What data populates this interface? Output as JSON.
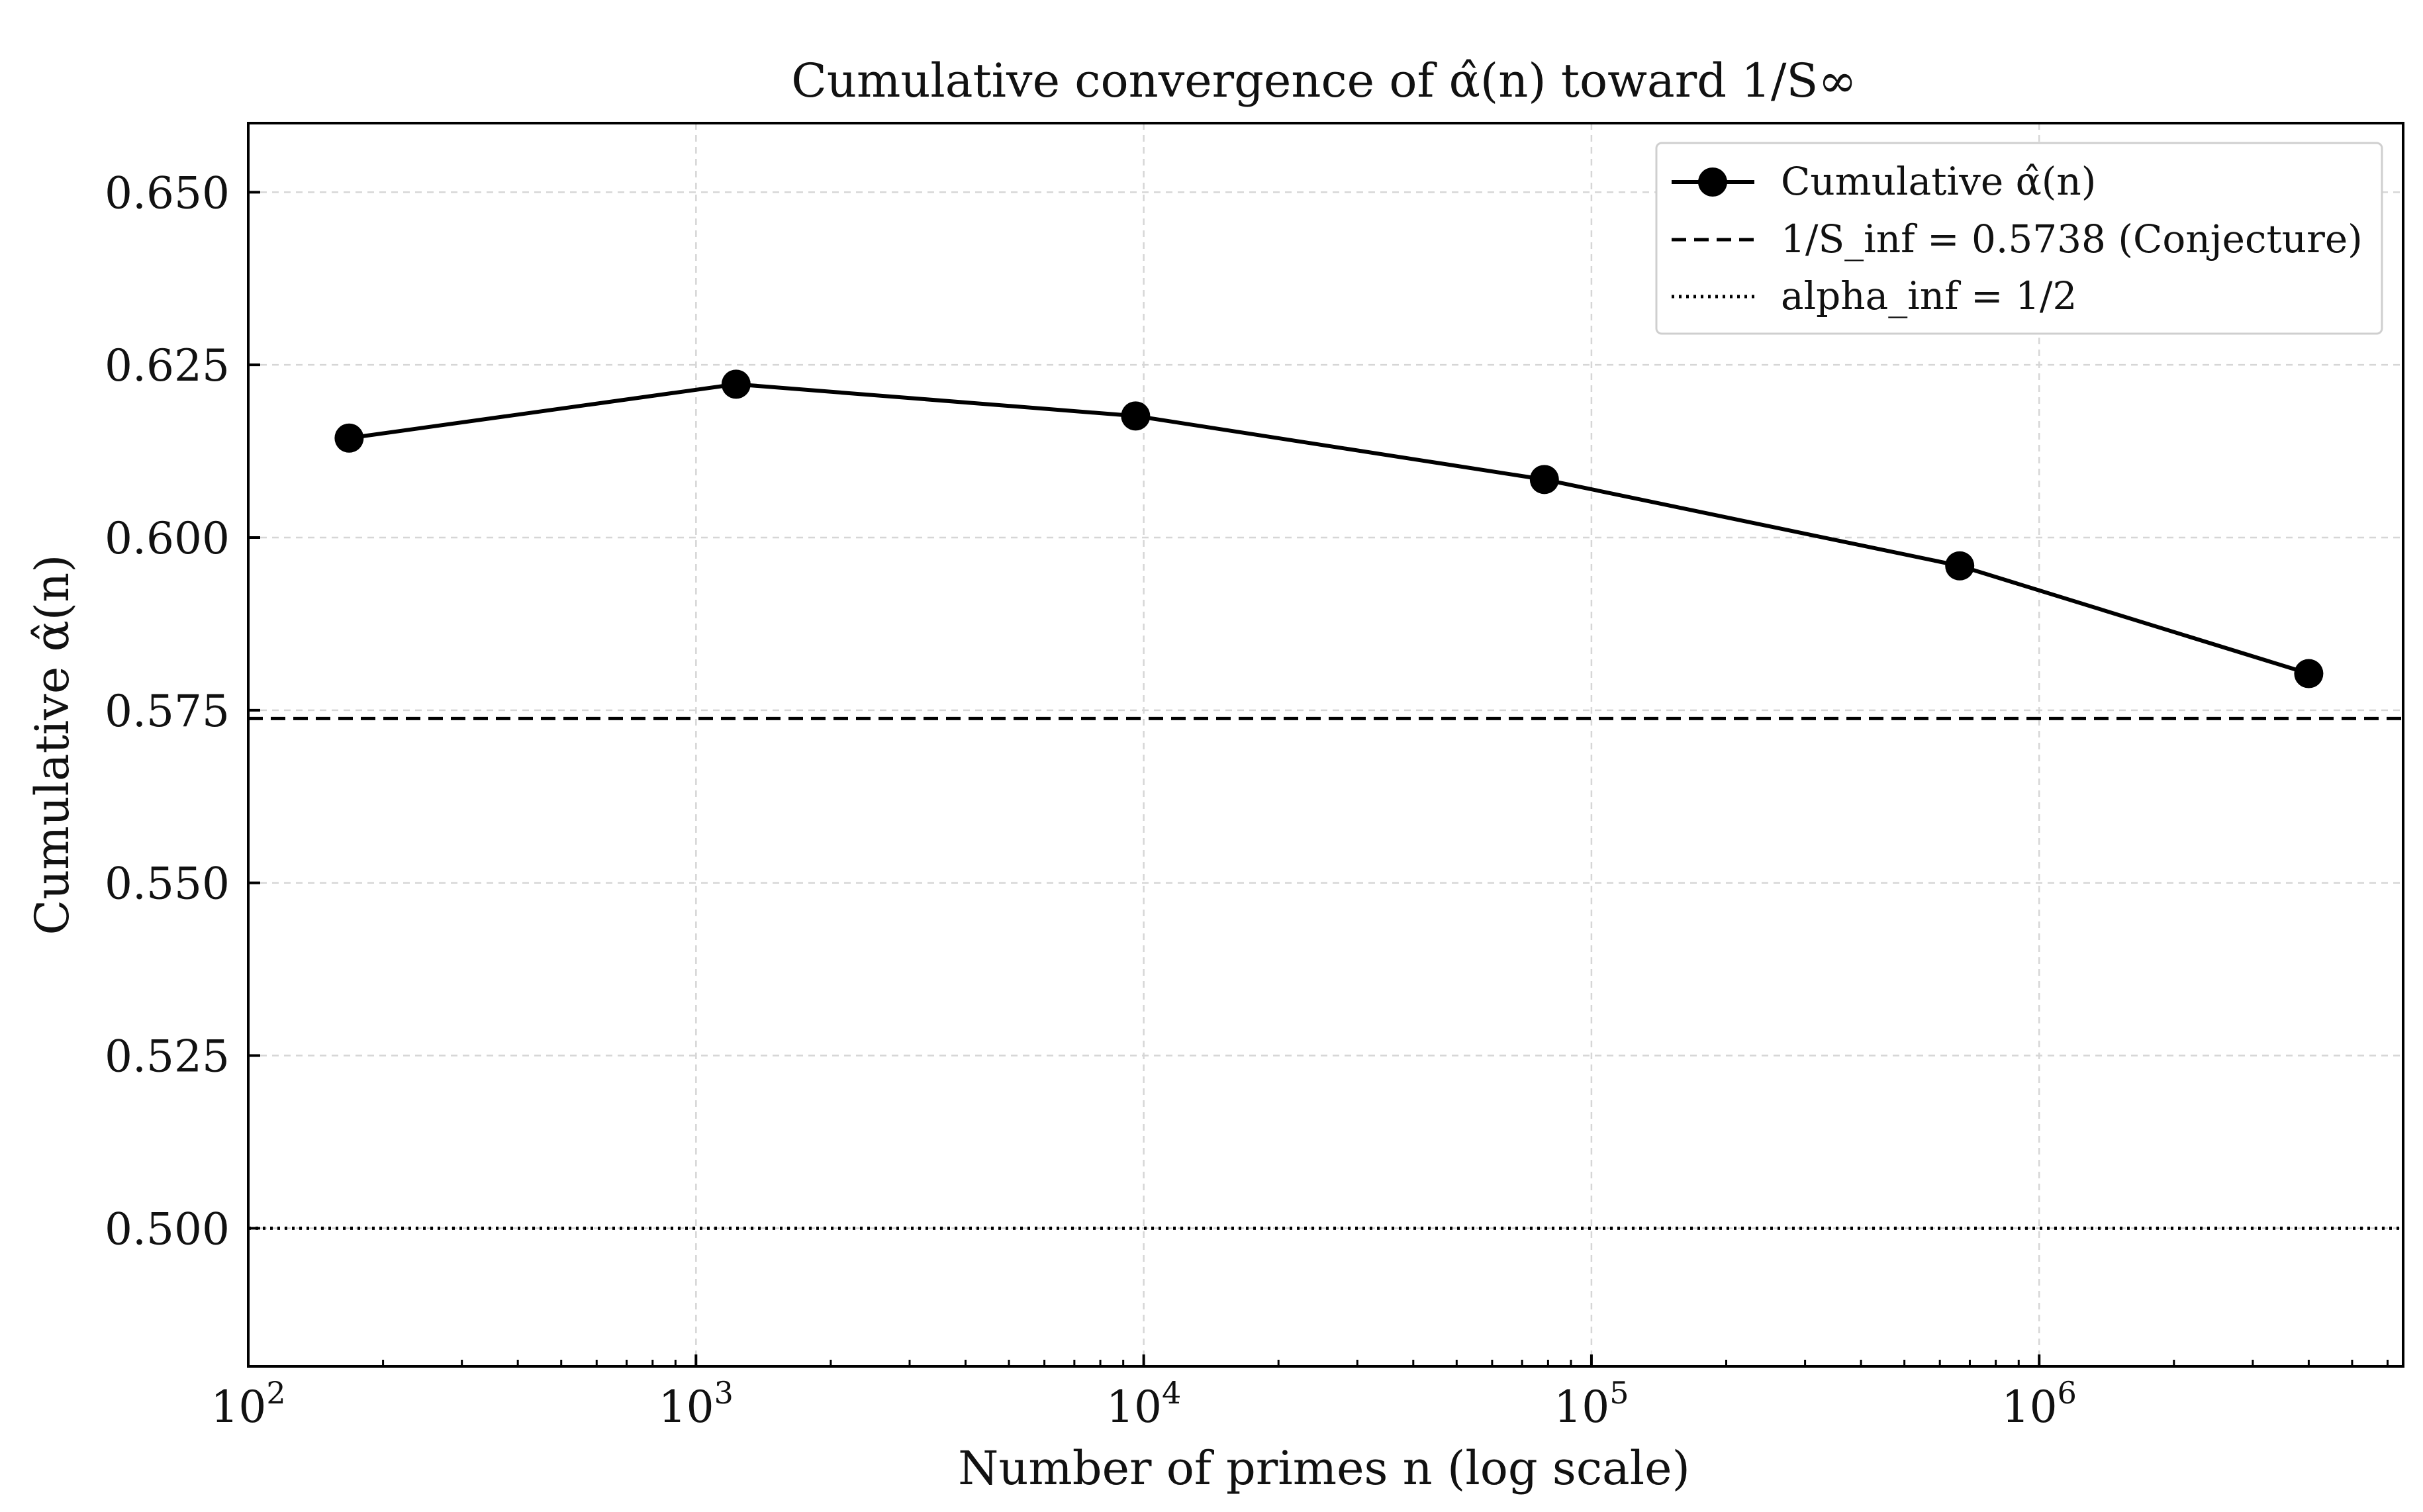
{
  "chart_data": {
    "type": "line",
    "title": "Cumulative convergence of α̂(n) toward 1/S∞",
    "xlabel": "Number of primes n (log scale)",
    "ylabel": "Cumulative α̂(n)",
    "xscale": "log",
    "xlim": [
      100,
      6500000
    ],
    "ylim": [
      0.48,
      0.66
    ],
    "x_ticks": [
      100,
      1000,
      10000,
      100000,
      1000000
    ],
    "x_tick_labels": [
      {
        "base": "10",
        "exp": "2"
      },
      {
        "base": "10",
        "exp": "3"
      },
      {
        "base": "10",
        "exp": "4"
      },
      {
        "base": "10",
        "exp": "5"
      },
      {
        "base": "10",
        "exp": "6"
      }
    ],
    "y_ticks": [
      0.5,
      0.525,
      0.55,
      0.575,
      0.6,
      0.625,
      0.65
    ],
    "y_tick_labels": [
      "0.500",
      "0.525",
      "0.550",
      "0.575",
      "0.600",
      "0.625",
      "0.650"
    ],
    "grid": true,
    "legend_position": "top-right",
    "series": [
      {
        "name": "Cumulative α̂(n)",
        "style": "solid",
        "marker": "circle",
        "color": "#000000",
        "x": [
          168,
          1229,
          9592,
          78498,
          664579,
          4000000
        ],
        "y": [
          0.6144,
          0.6222,
          0.6176,
          0.6084,
          0.5959,
          0.5803
        ]
      }
    ],
    "reference_lines": [
      {
        "name": "1/S_inf = 0.5738 (Conjecture)",
        "y": 0.5738,
        "style": "dashed",
        "color": "#000000"
      },
      {
        "name": "alpha_inf = 1/2",
        "y": 0.5,
        "style": "dotted",
        "color": "#000000"
      }
    ]
  }
}
